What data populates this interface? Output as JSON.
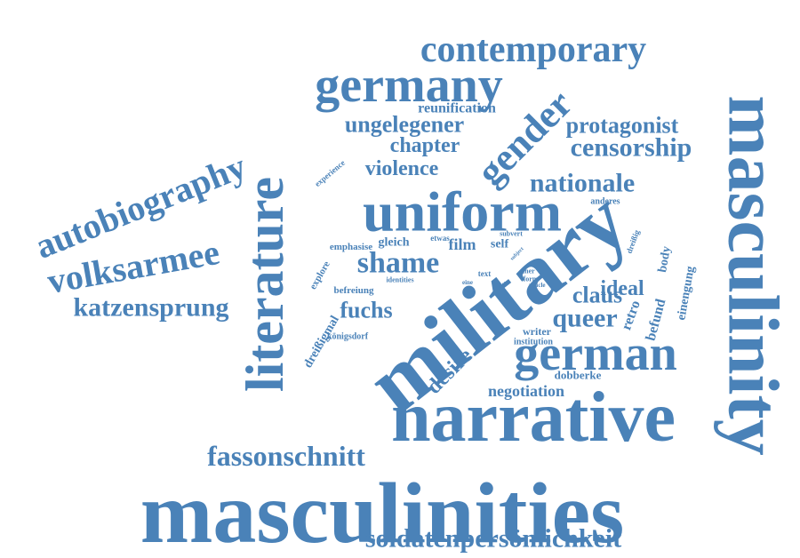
{
  "color": "#4a82b8",
  "words": [
    {
      "text": "masculinities",
      "size": 98,
      "rot": 0
    },
    {
      "text": "masculinity",
      "size": 82,
      "rot": 90
    },
    {
      "text": "military",
      "size": 98,
      "rot": -38
    },
    {
      "text": "narrative",
      "size": 80,
      "rot": 0
    },
    {
      "text": "uniform",
      "size": 64,
      "rot": 0
    },
    {
      "text": "literature",
      "size": 60,
      "rot": -90
    },
    {
      "text": "germany",
      "size": 56,
      "rot": 0
    },
    {
      "text": "german",
      "size": 56,
      "rot": 0
    },
    {
      "text": "gender",
      "size": 44,
      "rot": -45
    },
    {
      "text": "contemporary",
      "size": 42,
      "rot": 0
    },
    {
      "text": "autobiography",
      "size": 40,
      "rot": -22
    },
    {
      "text": "volksarmee",
      "size": 40,
      "rot": -10
    },
    {
      "text": "fassonschnitt",
      "size": 32,
      "rot": 0
    },
    {
      "text": "soldatenpersönlichkeit",
      "size": 30,
      "rot": 0
    },
    {
      "text": "nationale",
      "size": 30,
      "rot": 0
    },
    {
      "text": "censorship",
      "size": 30,
      "rot": 0
    },
    {
      "text": "katzensprung",
      "size": 30,
      "rot": 0
    },
    {
      "text": "shame",
      "size": 34,
      "rot": 0
    },
    {
      "text": "ungelegener",
      "size": 26,
      "rot": 0
    },
    {
      "text": "protagonist",
      "size": 26,
      "rot": 0
    },
    {
      "text": "queer",
      "size": 30,
      "rot": 0
    },
    {
      "text": "violence",
      "size": 24,
      "rot": 0
    },
    {
      "text": "chapter",
      "size": 24,
      "rot": 0
    },
    {
      "text": "fuchs",
      "size": 26,
      "rot": 0
    },
    {
      "text": "claus",
      "size": 26,
      "rot": 0
    },
    {
      "text": "ideal",
      "size": 24,
      "rot": 0
    },
    {
      "text": "desire",
      "size": 24,
      "rot": -45
    },
    {
      "text": "negotiation",
      "size": 18,
      "rot": 0
    },
    {
      "text": "reunification",
      "size": 16,
      "rot": 0
    },
    {
      "text": "film",
      "size": 18,
      "rot": 0
    },
    {
      "text": "self",
      "size": 14,
      "rot": 0
    },
    {
      "text": "body",
      "size": 14,
      "rot": -80
    },
    {
      "text": "befund",
      "size": 16,
      "rot": -75
    },
    {
      "text": "einengung",
      "size": 14,
      "rot": -80
    },
    {
      "text": "retro",
      "size": 16,
      "rot": -70
    },
    {
      "text": "dreißigmal",
      "size": 14,
      "rot": -60
    },
    {
      "text": "dobberke",
      "size": 13,
      "rot": 0
    },
    {
      "text": "writer",
      "size": 12,
      "rot": 0
    },
    {
      "text": "institution",
      "size": 10,
      "rot": 0
    },
    {
      "text": "königsdorf",
      "size": 10,
      "rot": 0
    },
    {
      "text": "emphasise",
      "size": 11,
      "rot": 0
    },
    {
      "text": "gleich",
      "size": 14,
      "rot": 0
    },
    {
      "text": "etwas",
      "size": 9,
      "rot": 0
    },
    {
      "text": "subvert",
      "size": 8,
      "rot": 0
    },
    {
      "text": "anderes",
      "size": 10,
      "rot": 0
    },
    {
      "text": "explore",
      "size": 11,
      "rot": -60
    },
    {
      "text": "befreiung",
      "size": 11,
      "rot": 0
    },
    {
      "text": "identities",
      "size": 8,
      "rot": 0
    },
    {
      "text": "experience",
      "size": 9,
      "rot": -40
    },
    {
      "text": "dreißig",
      "size": 9,
      "rot": -70
    },
    {
      "text": "text",
      "size": 9,
      "rot": 0
    },
    {
      "text": "eine",
      "size": 7,
      "rot": 0
    },
    {
      "text": "einer",
      "size": 8,
      "rot": 0
    },
    {
      "text": "form",
      "size": 8,
      "rot": 0
    },
    {
      "text": "article",
      "size": 7,
      "rot": 0
    },
    {
      "text": "subject",
      "size": 6,
      "rot": -45
    },
    {
      "text": "state",
      "size": 6,
      "rot": -45
    },
    {
      "text": "use",
      "size": 6,
      "rot": -45
    }
  ]
}
